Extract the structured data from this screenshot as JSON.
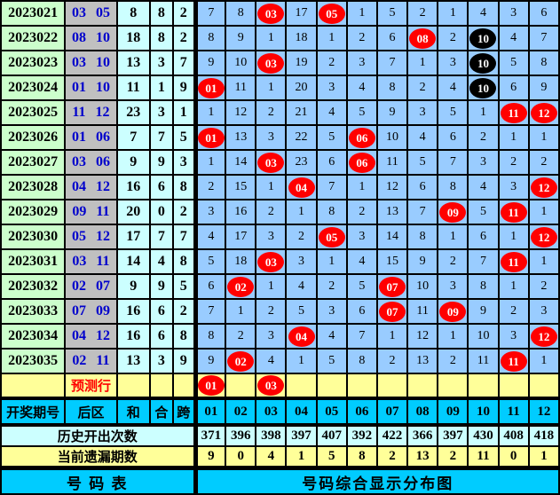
{
  "header": {
    "period_label": "开奖期号",
    "back_label": "后区",
    "sum_label": "和",
    "combine_label": "合",
    "span_label": "跨"
  },
  "footer": {
    "left_title": "号 码 表",
    "right_title": "号码综合显示分布图"
  },
  "colors": {
    "red_ball": "#ff0000",
    "black_ball": "#000000",
    "grid_bg": "#99ccff",
    "period_bg": "#ccffcc",
    "back_bg": "#c0c0c0",
    "stat_bg": "#ccffff",
    "yellow_bg": "#ffff99",
    "header_bg": "#00ccff",
    "back_text": "#0000cc",
    "prediction_text": "#ff0000"
  },
  "chart_data": {
    "type": "table",
    "title": "号码综合显示分布图",
    "columns": [
      "01",
      "02",
      "03",
      "04",
      "05",
      "06",
      "07",
      "08",
      "09",
      "10",
      "11",
      "12"
    ],
    "rows": [
      {
        "period": "2023021",
        "back": "03 05",
        "sum": "8",
        "combine": "8",
        "span": "2",
        "cells": [
          "7",
          "8",
          {
            "v": "03",
            "mark": "red"
          },
          "17",
          {
            "v": "05",
            "mark": "red"
          },
          "1",
          "5",
          "2",
          "1",
          "4",
          "3",
          "6"
        ]
      },
      {
        "period": "2023022",
        "back": "08 10",
        "sum": "18",
        "combine": "8",
        "span": "2",
        "cells": [
          "8",
          "9",
          "1",
          "18",
          "1",
          "2",
          "6",
          {
            "v": "08",
            "mark": "red"
          },
          "2",
          {
            "v": "10",
            "mark": "black"
          },
          "4",
          "7"
        ]
      },
      {
        "period": "2023023",
        "back": "03 10",
        "sum": "13",
        "combine": "3",
        "span": "7",
        "cells": [
          "9",
          "10",
          {
            "v": "03",
            "mark": "red"
          },
          "19",
          "2",
          "3",
          "7",
          "1",
          "3",
          {
            "v": "10",
            "mark": "black"
          },
          "5",
          "8"
        ]
      },
      {
        "period": "2023024",
        "back": "01 10",
        "sum": "11",
        "combine": "1",
        "span": "9",
        "cells": [
          {
            "v": "01",
            "mark": "red"
          },
          "11",
          "1",
          "20",
          "3",
          "4",
          "8",
          "2",
          "4",
          {
            "v": "10",
            "mark": "black"
          },
          "6",
          "9"
        ]
      },
      {
        "period": "2023025",
        "back": "11 12",
        "sum": "23",
        "combine": "3",
        "span": "1",
        "cells": [
          "1",
          "12",
          "2",
          "21",
          "4",
          "5",
          "9",
          "3",
          "5",
          "1",
          {
            "v": "11",
            "mark": "red"
          },
          {
            "v": "12",
            "mark": "red"
          }
        ]
      },
      {
        "period": "2023026",
        "back": "01 06",
        "sum": "7",
        "combine": "7",
        "span": "5",
        "cells": [
          {
            "v": "01",
            "mark": "red"
          },
          "13",
          "3",
          "22",
          "5",
          {
            "v": "06",
            "mark": "red"
          },
          "10",
          "4",
          "6",
          "2",
          "1",
          "1"
        ]
      },
      {
        "period": "2023027",
        "back": "03 06",
        "sum": "9",
        "combine": "9",
        "span": "3",
        "cells": [
          "1",
          "14",
          {
            "v": "03",
            "mark": "red"
          },
          "23",
          "6",
          {
            "v": "06",
            "mark": "red"
          },
          "11",
          "5",
          "7",
          "3",
          "2",
          "2"
        ]
      },
      {
        "period": "2023028",
        "back": "04 12",
        "sum": "16",
        "combine": "6",
        "span": "8",
        "cells": [
          "2",
          "15",
          "1",
          {
            "v": "04",
            "mark": "red"
          },
          "7",
          "1",
          "12",
          "6",
          "8",
          "4",
          "3",
          {
            "v": "12",
            "mark": "red"
          }
        ]
      },
      {
        "period": "2023029",
        "back": "09 11",
        "sum": "20",
        "combine": "0",
        "span": "2",
        "cells": [
          "3",
          "16",
          "2",
          "1",
          "8",
          "2",
          "13",
          "7",
          {
            "v": "09",
            "mark": "red"
          },
          "5",
          {
            "v": "11",
            "mark": "red"
          },
          "1"
        ]
      },
      {
        "period": "2023030",
        "back": "05 12",
        "sum": "17",
        "combine": "7",
        "span": "7",
        "cells": [
          "4",
          "17",
          "3",
          "2",
          {
            "v": "05",
            "mark": "red"
          },
          "3",
          "14",
          "8",
          "1",
          "6",
          "1",
          {
            "v": "12",
            "mark": "red"
          }
        ]
      },
      {
        "period": "2023031",
        "back": "03 11",
        "sum": "14",
        "combine": "4",
        "span": "8",
        "cells": [
          "5",
          "18",
          {
            "v": "03",
            "mark": "red"
          },
          "3",
          "1",
          "4",
          "15",
          "9",
          "2",
          "7",
          {
            "v": "11",
            "mark": "red"
          },
          "1"
        ]
      },
      {
        "period": "2023032",
        "back": "02 07",
        "sum": "9",
        "combine": "9",
        "span": "5",
        "cells": [
          "6",
          {
            "v": "02",
            "mark": "red"
          },
          "1",
          "4",
          "2",
          "5",
          {
            "v": "07",
            "mark": "red"
          },
          "10",
          "3",
          "8",
          "1",
          "2"
        ]
      },
      {
        "period": "2023033",
        "back": "07 09",
        "sum": "16",
        "combine": "6",
        "span": "2",
        "cells": [
          "7",
          "1",
          "2",
          "5",
          "3",
          "6",
          {
            "v": "07",
            "mark": "red"
          },
          "11",
          {
            "v": "09",
            "mark": "red"
          },
          "9",
          "2",
          "3"
        ]
      },
      {
        "period": "2023034",
        "back": "04 12",
        "sum": "16",
        "combine": "6",
        "span": "8",
        "cells": [
          "8",
          "2",
          "3",
          {
            "v": "04",
            "mark": "red"
          },
          "4",
          "7",
          "1",
          "12",
          "1",
          "10",
          "3",
          {
            "v": "12",
            "mark": "red"
          }
        ]
      },
      {
        "period": "2023035",
        "back": "02 11",
        "sum": "13",
        "combine": "3",
        "span": "9",
        "cells": [
          "9",
          {
            "v": "02",
            "mark": "red"
          },
          "4",
          "1",
          "5",
          "8",
          "2",
          "13",
          "2",
          "11",
          {
            "v": "11",
            "mark": "red"
          },
          "1"
        ]
      }
    ],
    "prediction_row": {
      "label": "预测行",
      "cells": [
        {
          "v": "01",
          "mark": "red"
        },
        "",
        {
          "v": "03",
          "mark": "red"
        },
        "",
        "",
        "",
        "",
        "",
        "",
        "",
        "",
        ""
      ]
    },
    "stats": {
      "history_label": "历史开出次数",
      "history_counts": [
        "371",
        "396",
        "398",
        "397",
        "407",
        "392",
        "422",
        "366",
        "397",
        "430",
        "408",
        "418"
      ],
      "missing_label": "当前遗漏期数",
      "missing_counts": [
        "9",
        "0",
        "4",
        "1",
        "5",
        "8",
        "2",
        "13",
        "2",
        "11",
        "0",
        "1"
      ]
    }
  }
}
